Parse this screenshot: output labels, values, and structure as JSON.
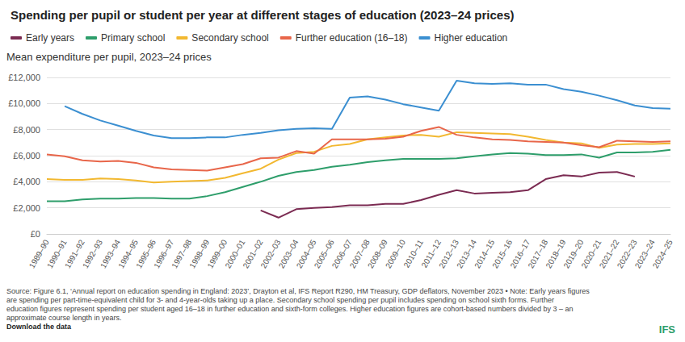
{
  "chart_data": {
    "type": "line",
    "title": "Spending per pupil or student per year at different stages of education (2023–24 prices)",
    "subtitle": "Mean expenditure per pupil, 2023–24 prices",
    "legend": "top-left",
    "grid": true,
    "categories": [
      "1989–90",
      "1990–91",
      "1991–92",
      "1992–93",
      "1993–94",
      "1994–95",
      "1995–96",
      "1996–97",
      "1997–98",
      "1998–99",
      "1999–00",
      "2000–01",
      "2001–02",
      "2002–03",
      "2003–04",
      "2004–05",
      "2005–06",
      "2006–07",
      "2007–08",
      "2008–09",
      "2009–10",
      "2010–11",
      "2011–12",
      "2012–13",
      "2013–14",
      "2014–15",
      "2015–16",
      "2016–17",
      "2017–18",
      "2018–19",
      "2019–20",
      "2020–21",
      "2021–22",
      "2022–23",
      "2023–24",
      "2024–25"
    ],
    "ylim": [
      0,
      12000
    ],
    "yticks": [
      {
        "value": 0,
        "label": "£0"
      },
      {
        "value": 2000,
        "label": "£2,000"
      },
      {
        "value": 4000,
        "label": "£4,000"
      },
      {
        "value": 6000,
        "label": "£6,000"
      },
      {
        "value": 8000,
        "label": "£8,000"
      },
      {
        "value": 10000,
        "label": "£10,000"
      },
      {
        "value": 12000,
        "label": "£12,000"
      }
    ],
    "series": [
      {
        "name": "Early years",
        "color": "#7b2b52",
        "values": [
          null,
          null,
          null,
          null,
          null,
          null,
          null,
          null,
          null,
          null,
          null,
          null,
          1800,
          1250,
          1900,
          2000,
          2050,
          2200,
          2200,
          2300,
          2300,
          2600,
          3000,
          3350,
          3100,
          3150,
          3200,
          3350,
          4200,
          4500,
          4400,
          4700,
          4750,
          4400,
          null,
          null
        ]
      },
      {
        "name": "Primary school",
        "color": "#2e9e6b",
        "values": [
          2500,
          2500,
          2650,
          2700,
          2700,
          2750,
          2750,
          2700,
          2700,
          2900,
          3200,
          3600,
          4000,
          4450,
          4750,
          4900,
          5150,
          5300,
          5500,
          5650,
          5750,
          5750,
          5750,
          5800,
          5950,
          6100,
          6200,
          6150,
          6050,
          6050,
          6100,
          5850,
          6250,
          6250,
          6300,
          6450
        ]
      },
      {
        "name": "Secondary school",
        "color": "#f2b830",
        "values": [
          4200,
          4150,
          4150,
          4250,
          4200,
          4100,
          3950,
          4000,
          4050,
          4100,
          4300,
          4650,
          5000,
          5700,
          6200,
          6300,
          6750,
          6900,
          7250,
          7400,
          7550,
          7600,
          7450,
          7800,
          7750,
          7700,
          7650,
          7450,
          7200,
          7000,
          6950,
          6600,
          6850,
          6900,
          6900,
          6950
        ]
      },
      {
        "name": "Further education (16–18)",
        "color": "#e8664a",
        "values": [
          6100,
          5950,
          5650,
          5550,
          5600,
          5450,
          5100,
          4950,
          4900,
          4850,
          5100,
          5350,
          5800,
          5850,
          6350,
          6150,
          7250,
          7250,
          7250,
          7300,
          7450,
          7900,
          8200,
          7600,
          7400,
          7250,
          7200,
          7100,
          7050,
          7000,
          6800,
          6650,
          7150,
          7100,
          7050,
          7100
        ]
      },
      {
        "name": "Higher education",
        "color": "#3b8fd1",
        "values": [
          null,
          9800,
          9200,
          8700,
          8300,
          7900,
          7550,
          7350,
          7350,
          7400,
          7400,
          7600,
          7750,
          7950,
          8050,
          8100,
          8050,
          10450,
          10550,
          10300,
          9950,
          9700,
          9450,
          11750,
          11550,
          11500,
          11550,
          11450,
          11450,
          11100,
          10900,
          10600,
          10250,
          9850,
          9650,
          9600
        ]
      }
    ],
    "notes": [
      "Source: Figure 6.1, ‘Annual report on education spending in England: 2023’, Drayton et al, IFS Report R290, HM Treasury, GDP deflators, November 2023 • Note: Early years figures",
      "are spending per part-time-equivalent child for 3- and 4-year-olds taking up a place. Secondary school spending per pupil includes spending on school sixth forms. Further",
      "education figures represent spending per student aged 16–18 in further education and sixth-form colleges. Higher education figures are cohort-based numbers divided by 3 – an",
      "approximate course length in years."
    ],
    "link": "Download the data",
    "logo": "IFS"
  }
}
